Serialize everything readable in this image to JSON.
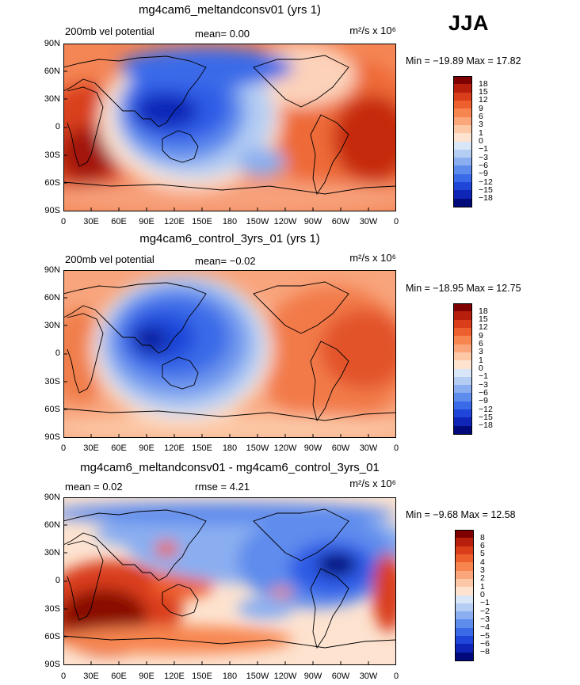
{
  "season": "JJA",
  "y_ticks": [
    "90N",
    "60N",
    "30N",
    "0",
    "30S",
    "60S",
    "90S"
  ],
  "x_ticks": [
    "0",
    "30E",
    "60E",
    "90E",
    "120E",
    "150E",
    "180",
    "150W",
    "120W",
    "90W",
    "60W",
    "30W",
    "0"
  ],
  "panels": [
    {
      "title": "mg4cam6_meltandconsv01 (yrs 1)",
      "left_label": "200mb vel potential",
      "stat1": "mean=   0.00",
      "stat2": "",
      "units": "m²/s x 10⁶",
      "minmax": "Min = −19.89 Max =  17.82",
      "colorbar_labels": [
        "18",
        "15",
        "12",
        "9",
        "6",
        "3",
        "1",
        "0",
        "−1",
        "−3",
        "−6",
        "−9",
        "−12",
        "−15",
        "−18"
      ]
    },
    {
      "title": "mg4cam6_control_3yrs_01 (yrs 1)",
      "left_label": "200mb vel potential",
      "stat1": "mean=  −0.02",
      "stat2": "",
      "units": "m²/s x 10⁶",
      "minmax": "Min = −18.95 Max =  12.75",
      "colorbar_labels": [
        "18",
        "15",
        "12",
        "9",
        "6",
        "3",
        "1",
        "0",
        "−1",
        "−3",
        "−6",
        "−9",
        "−12",
        "−15",
        "−18"
      ]
    },
    {
      "title": "mg4cam6_meltandconsv01 - mg4cam6_control_3yrs_01",
      "left_label": "mean =    0.02",
      "stat1": "rmse =   4.21",
      "stat2": "",
      "units": "m²/s x 10⁶",
      "minmax": "Min =  −9.68 Max =  12.58",
      "colorbar_labels": [
        "8",
        "6",
        "5",
        "4",
        "3",
        "2",
        "1",
        "0",
        "−1",
        "−2",
        "−3",
        "−4",
        "−5",
        "−6",
        "−8"
      ]
    }
  ],
  "colors": {
    "scale": [
      "#7f0000",
      "#b81e0c",
      "#d93d1a",
      "#ee5f2e",
      "#f7854f",
      "#fba67a",
      "#fcc8a6",
      "#fde3d0",
      "#d9e6f8",
      "#b4cdf3",
      "#8aaef0",
      "#5e8ced",
      "#3a6ae8",
      "#1f46d9",
      "#0f25b8",
      "#000a7a"
    ]
  }
}
